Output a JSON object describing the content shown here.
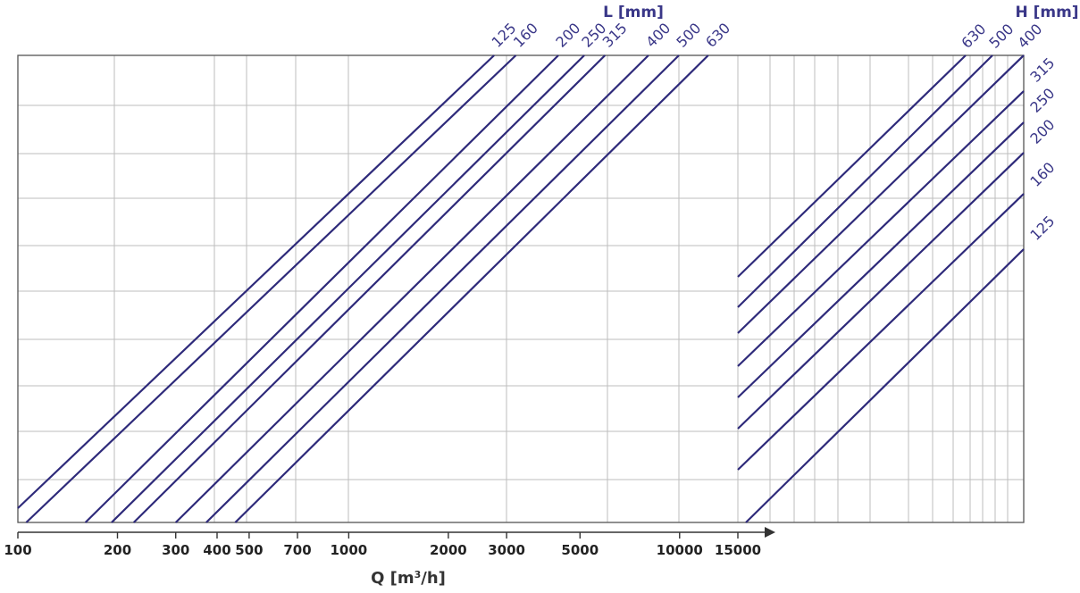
{
  "colors": {
    "series": "#2e2a7a",
    "grid": "#bdbdbd",
    "frame": "#555555",
    "accent": "#3a3788"
  },
  "chart_data": {
    "type": "line",
    "xscale": "log",
    "xlabel": "Q [m",
    "xlabel_sup": "3",
    "xlabel_end": "/h]",
    "xticks": [
      100,
      200,
      300,
      400,
      500,
      700,
      1000,
      2000,
      3000,
      5000,
      10000,
      15000
    ],
    "xtick_labels": [
      "100",
      "200",
      "300",
      "400",
      "500",
      "700",
      "1000",
      "2000",
      "3000",
      "5000",
      "10000",
      "15000"
    ],
    "left_group": {
      "axis_title": "L [mm]",
      "series": [
        {
          "name": "125",
          "x_start": 100,
          "x_end": 2750
        },
        {
          "name": "160",
          "x_start": 106,
          "x_end": 3200
        },
        {
          "name": "200",
          "x_start": 160,
          "x_end": 4300
        },
        {
          "name": "250",
          "x_start": 192,
          "x_end": 5150
        },
        {
          "name": "315",
          "x_start": 224,
          "x_end": 5950
        },
        {
          "name": "400",
          "x_start": 300,
          "x_end": 8050
        },
        {
          "name": "500",
          "x_start": 371,
          "x_end": 9950
        },
        {
          "name": "630",
          "x_start": 454,
          "x_end": 12200
        }
      ]
    },
    "right_group": {
      "axis_title": "H [mm]",
      "series": [
        {
          "name": "630"
        },
        {
          "name": "500"
        },
        {
          "name": "400"
        },
        {
          "name": "315"
        },
        {
          "name": "250"
        },
        {
          "name": "200"
        },
        {
          "name": "160"
        },
        {
          "name": "125"
        }
      ]
    }
  }
}
